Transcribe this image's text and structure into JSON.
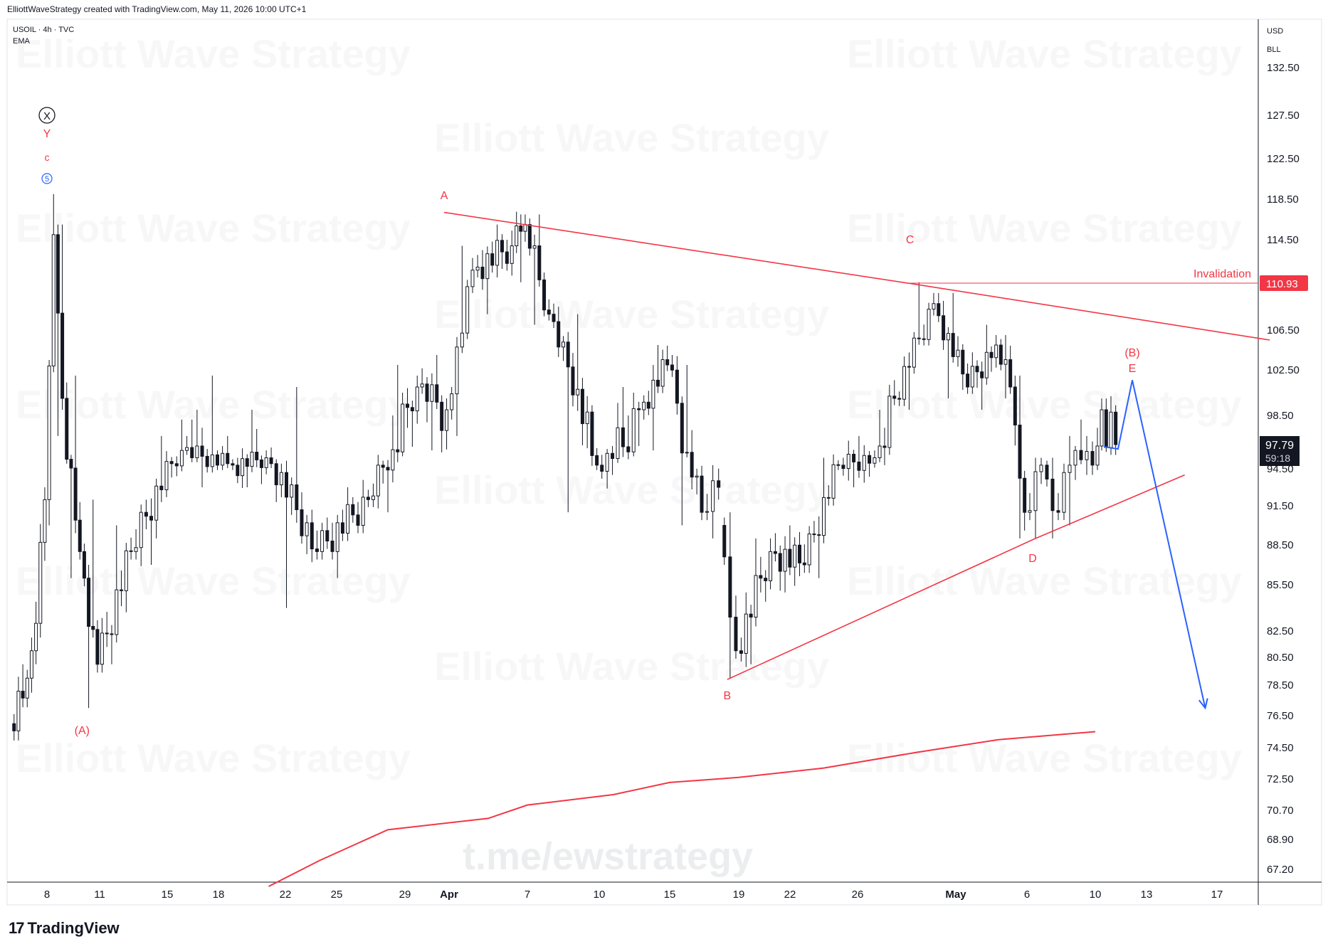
{
  "header": {
    "attribution": "ElliottWaveStrategy created with TradingView.com, May 11, 2026 10:00 UTC+1",
    "symbol_line": "USOIL · 4h · TVC",
    "indicator": "EMA"
  },
  "watermarks": {
    "text": "Elliott Wave Strategy",
    "url": "t.me/ewstrategy"
  },
  "footer": {
    "brand": "TradingView"
  },
  "chart_data": {
    "type": "candlestick",
    "symbol": "USOIL",
    "timeframe": "4h",
    "source": "TVC",
    "currency": "USD",
    "unit": "BLL",
    "y_ticks": [
      132.5,
      127.5,
      122.5,
      118.5,
      114.5,
      110.93,
      106.5,
      102.5,
      98.5,
      97.79,
      94.5,
      91.5,
      88.5,
      85.5,
      82.5,
      80.5,
      78.5,
      76.5,
      74.5,
      72.5,
      70.7,
      68.9,
      67.2
    ],
    "x_ticks": [
      "8",
      "11",
      "15",
      "18",
      "22",
      "25",
      "29",
      "Apr",
      "7",
      "10",
      "15",
      "19",
      "22",
      "26",
      "May",
      "6",
      "10",
      "13",
      "17"
    ],
    "last_price": "97.79",
    "countdown": "59:18",
    "invalidation_label": "Invalidation",
    "invalidation_level": "110.93",
    "wave_labels": {
      "top": [
        "X",
        "Y",
        "c",
        "5"
      ],
      "A_prev": "(A)",
      "A": "A",
      "B": "B",
      "C": "C",
      "D": "D",
      "B_big": "(B)",
      "E": "E"
    },
    "triangle": {
      "upper_line": [
        [
          "Mar 31 16:00",
          117.2
        ],
        [
          "Apr 28 16:00",
          110.9
        ],
        [
          "May 20 00:00",
          105.5
        ]
      ],
      "lower_line": [
        [
          "Apr 18 08:00",
          78.9
        ],
        [
          "May 6 08:00",
          88.9
        ],
        [
          "May 15 04:00",
          94.0
        ]
      ]
    },
    "projection": [
      [
        "May 10 12:00",
        97.5
      ],
      [
        "May 11 08:00",
        97.2
      ],
      [
        "May 12 04:00",
        101.6
      ],
      [
        "May 16 08:00",
        77.0
      ]
    ],
    "ema_points": [
      [
        "Mar 21",
        66.2
      ],
      [
        "Mar 24",
        67.7
      ],
      [
        "Mar 28",
        69.5
      ],
      [
        "Apr 4",
        70.2
      ],
      [
        "Apr 7",
        71.0
      ],
      [
        "Apr 11",
        71.6
      ],
      [
        "Apr 15",
        72.3
      ],
      [
        "Apr 19",
        72.6
      ],
      [
        "Apr 24",
        73.2
      ],
      [
        "Apr 29",
        74.2
      ],
      [
        "May 4",
        75.0
      ],
      [
        "May 10",
        75.5
      ]
    ],
    "ohlc_approx": [
      {
        "x": "Mar 6",
        "o": 76,
        "h": 80,
        "l": 75,
        "c": 79
      },
      {
        "x": "Mar 7",
        "o": 79,
        "h": 84,
        "l": 78,
        "c": 83
      },
      {
        "x": "Mar 7b",
        "o": 83,
        "h": 93,
        "l": 82,
        "c": 92
      },
      {
        "x": "Mar 8",
        "o": 92,
        "h": 119,
        "l": 90,
        "c": 115
      },
      {
        "x": "Mar 8b",
        "o": 115,
        "h": 116,
        "l": 98,
        "c": 100
      },
      {
        "x": "Mar 9",
        "o": 100,
        "h": 102,
        "l": 86,
        "c": 88
      },
      {
        "x": "Mar 10",
        "o": 88,
        "h": 92,
        "l": 77,
        "c": 80
      },
      {
        "x": "Mar 11",
        "o": 80,
        "h": 90,
        "l": 80,
        "c": 88
      },
      {
        "x": "Mar 13",
        "o": 88,
        "h": 98,
        "l": 87,
        "c": 97
      },
      {
        "x": "Mar 16",
        "o": 97,
        "h": 102,
        "l": 93,
        "c": 95
      },
      {
        "x": "Mar 19",
        "o": 95,
        "h": 99,
        "l": 93,
        "c": 96
      },
      {
        "x": "Mar 21",
        "o": 96,
        "h": 101,
        "l": 84,
        "c": 88
      },
      {
        "x": "Mar 24",
        "o": 88,
        "h": 93,
        "l": 86,
        "c": 92
      },
      {
        "x": "Mar 27",
        "o": 92,
        "h": 103,
        "l": 91,
        "c": 101
      },
      {
        "x": "Mar 30",
        "o": 101,
        "h": 104,
        "l": 97,
        "c": 99
      },
      {
        "x": "Apr 1",
        "o": 99,
        "h": 114,
        "l": 98,
        "c": 112
      },
      {
        "x": "Apr 3",
        "o": 112,
        "h": 116,
        "l": 108,
        "c": 114
      },
      {
        "x": "Apr 6",
        "o": 114,
        "h": 117,
        "l": 111,
        "c": 116
      },
      {
        "x": "Apr 7",
        "o": 116,
        "h": 117,
        "l": 107,
        "c": 108
      },
      {
        "x": "Apr 8",
        "o": 108,
        "h": 108,
        "l": 91,
        "c": 95
      },
      {
        "x": "Apr 10",
        "o": 95,
        "h": 101,
        "l": 94,
        "c": 99
      },
      {
        "x": "Apr 13",
        "o": 99,
        "h": 105,
        "l": 97,
        "c": 103
      },
      {
        "x": "Apr 15",
        "o": 103,
        "h": 103,
        "l": 90,
        "c": 91
      },
      {
        "x": "Apr 17",
        "o": 91,
        "h": 95,
        "l": 89,
        "c": 93
      },
      {
        "x": "Apr 18",
        "o": 90,
        "h": 91,
        "l": 79,
        "c": 81
      },
      {
        "x": "Apr 19",
        "o": 81,
        "h": 89,
        "l": 80,
        "c": 88
      },
      {
        "x": "Apr 21",
        "o": 88,
        "h": 90,
        "l": 85,
        "c": 87
      },
      {
        "x": "Apr 23",
        "o": 87,
        "h": 96,
        "l": 86,
        "c": 95
      },
      {
        "x": "Apr 25",
        "o": 95,
        "h": 98,
        "l": 93,
        "c": 96
      },
      {
        "x": "Apr 27",
        "o": 96,
        "h": 101,
        "l": 95,
        "c": 100
      },
      {
        "x": "Apr 28",
        "o": 100,
        "h": 111,
        "l": 99,
        "c": 109
      },
      {
        "x": "Apr 30",
        "o": 109,
        "h": 110,
        "l": 100,
        "c": 101
      },
      {
        "x": "May 2",
        "o": 101,
        "h": 107,
        "l": 99,
        "c": 105
      },
      {
        "x": "May 4",
        "o": 105,
        "h": 106,
        "l": 100,
        "c": 101
      },
      {
        "x": "May 5",
        "o": 101,
        "h": 102,
        "l": 89,
        "c": 91
      },
      {
        "x": "May 6",
        "o": 91,
        "h": 96,
        "l": 89,
        "c": 95
      },
      {
        "x": "May 7",
        "o": 95,
        "h": 96,
        "l": 89,
        "c": 91
      },
      {
        "x": "May 8",
        "o": 91,
        "h": 98,
        "l": 90,
        "c": 97
      },
      {
        "x": "May 9",
        "o": 97,
        "h": 98,
        "l": 94,
        "c": 95
      },
      {
        "x": "May 10",
        "o": 95,
        "h": 100,
        "l": 95,
        "c": 99
      },
      {
        "x": "May 10b",
        "o": 99,
        "h": 100,
        "l": 97,
        "c": 97.79
      }
    ]
  },
  "colors": {
    "wave_red": "#f23645",
    "projection_blue": "#2962ff",
    "ema_red": "#f23645",
    "candle": "#131722",
    "axis_line": "#d1d4dc",
    "price_badge_bg": "#131722",
    "invalidation_badge_bg": "#f23645"
  }
}
